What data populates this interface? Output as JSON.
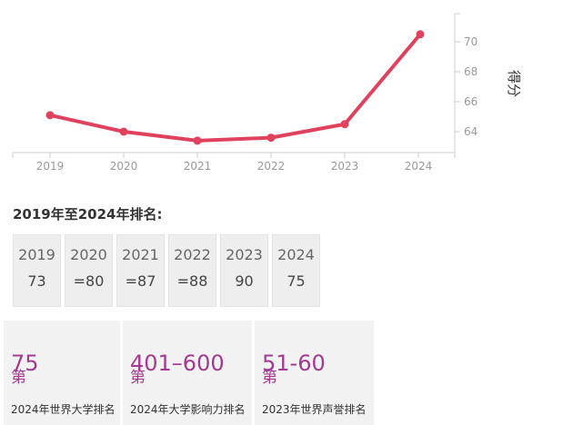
{
  "chart_data": {
    "type": "line",
    "x": [
      "2019",
      "2020",
      "2021",
      "2022",
      "2023",
      "2024"
    ],
    "series": [
      {
        "values": [
          65.1,
          64.0,
          63.4,
          63.6,
          64.5,
          70.5
        ],
        "color": "#e0425e"
      }
    ],
    "ylabel": "得分",
    "yticks": [
      64,
      66,
      68,
      70
    ],
    "ylim": [
      62.2,
      72
    ],
    "grid": false,
    "y_axis_side": "right"
  },
  "ranking": {
    "title": "2019年至2024年排名:",
    "items": [
      {
        "year": "2019",
        "value": "73"
      },
      {
        "year": "2020",
        "value": "=80"
      },
      {
        "year": "2021",
        "value": "=87"
      },
      {
        "year": "2022",
        "value": "=88"
      },
      {
        "year": "2023",
        "value": "90"
      },
      {
        "year": "2024",
        "value": "75"
      }
    ]
  },
  "cards": [
    {
      "value": "75",
      "suffix": "第",
      "label": "2024年世界大学排名"
    },
    {
      "value": "401–600",
      "suffix": "第",
      "label": "2024年大学影响力排名"
    },
    {
      "value": "51-60",
      "suffix": "第",
      "label": "2023年世界声誉排名"
    }
  ],
  "colors": {
    "accent": "#a23a91",
    "line": "#e0425e"
  }
}
